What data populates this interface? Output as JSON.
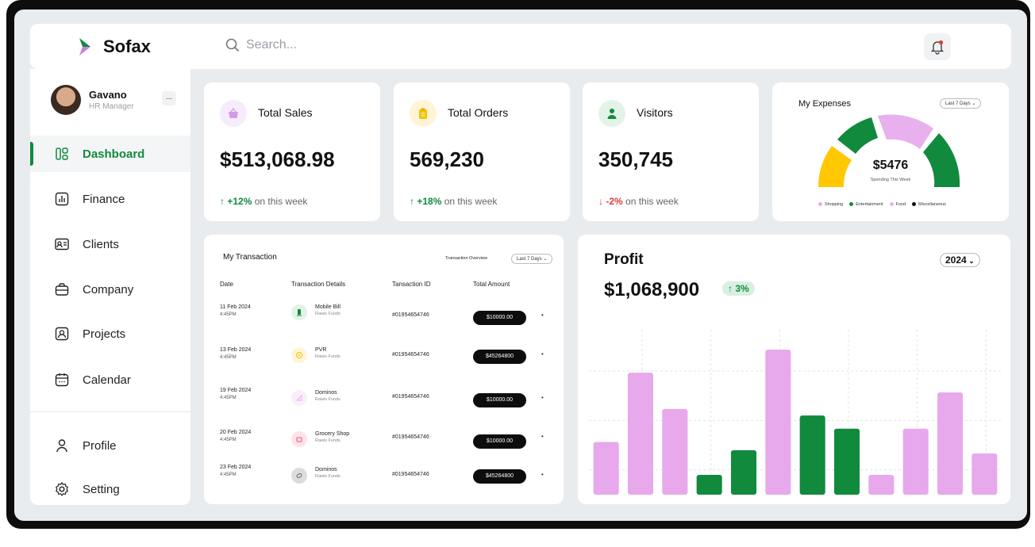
{
  "app": {
    "name": "Sofax"
  },
  "search": {
    "placeholder": "Search..."
  },
  "user": {
    "name": "Gavano",
    "role": "HR Manager",
    "more": "..."
  },
  "nav": [
    {
      "label": "Dashboard",
      "icon": "dashboard-icon"
    },
    {
      "label": "Finance",
      "icon": "finance-icon"
    },
    {
      "label": "Clients",
      "icon": "clients-icon"
    },
    {
      "label": "Company",
      "icon": "company-icon"
    },
    {
      "label": "Projects",
      "icon": "projects-icon"
    },
    {
      "label": "Calendar",
      "icon": "calendar-icon"
    },
    {
      "label": "Profile",
      "icon": "profile-icon"
    },
    {
      "label": "Setting",
      "icon": "settings-icon"
    }
  ],
  "stats": [
    {
      "title": "Total Sales",
      "value": "$513,068.98",
      "change": "+12%",
      "suffix": "on this week",
      "trend": "up",
      "icon": "basket-icon",
      "icon_bg": "#f7ecfb",
      "icon_color": "#d49be8"
    },
    {
      "title": "Total Orders",
      "value": "569,230",
      "change": "+18%",
      "suffix": "on this week",
      "trend": "up",
      "icon": "clipboard-icon",
      "icon_bg": "#fff5d6",
      "icon_color": "#f2c200"
    },
    {
      "title": "Visitors",
      "value": "350,745",
      "change": "-2%",
      "suffix": "on this week",
      "trend": "down",
      "icon": "user-icon",
      "icon_bg": "#e3f3e8",
      "icon_color": "#118a3e"
    }
  ],
  "expenses": {
    "title": "My Expenses",
    "period": "Last 7 Days",
    "amount": "$5476",
    "caption": "Spending This Week",
    "legend": [
      {
        "label": "Shopping",
        "color": "#e8b0ec"
      },
      {
        "label": "Entertainment",
        "color": "#118a3e"
      },
      {
        "label": "Food",
        "color": "#e8b0ec"
      },
      {
        "label": "Miscellaneous",
        "color": "#111111"
      }
    ]
  },
  "transactions": {
    "title": "My Transaction",
    "overview_label": "Transaction Overview",
    "period": "Last 7 Days",
    "columns": [
      "Date",
      "Transaction Details",
      "Tansaction ID",
      "Total Amount"
    ],
    "rows": [
      {
        "date": "11 Feb 2024",
        "time": "4:45PM",
        "name": "Mobile Bill",
        "source": "Rawis Funds",
        "id": "#01954654746",
        "amount": "$10000.00",
        "icon": "mobile-icon",
        "icon_bg": "#e3f3e8"
      },
      {
        "date": "13 Feb 2024",
        "time": "4:45PM",
        "name": "PVR",
        "source": "Rawis Funds",
        "id": "#01954654746",
        "amount": "$45264800",
        "icon": "film-icon",
        "icon_bg": "#fff5d6"
      },
      {
        "date": "19 Feb 2024",
        "time": "4:45PM",
        "name": "Dominos",
        "source": "Rawis Funds",
        "id": "#01954654746",
        "amount": "$10000.00",
        "icon": "pizza-icon",
        "icon_bg": "#fbeefc"
      },
      {
        "date": "20 Feb 2024",
        "time": "4:45PM",
        "name": "Grocery Shop",
        "source": "Rawis Funds",
        "id": "#01954654746",
        "amount": "$10000.00",
        "icon": "cart-icon",
        "icon_bg": "#fde3ea"
      },
      {
        "date": "23 Feb 2024",
        "time": "4:45PM",
        "name": "Dominos",
        "source": "Rawis Funds",
        "id": "#01954654746",
        "amount": "$45264800",
        "icon": "pizza-icon",
        "icon_bg": "#dcdcdc"
      }
    ]
  },
  "profit": {
    "title": "Profit",
    "year": "2024",
    "amount": "$1,068,900",
    "change": "3%"
  },
  "chart_data": {
    "type": "bar",
    "values": [
      32,
      74,
      52,
      12,
      27,
      88,
      48,
      40,
      12,
      40,
      62,
      25
    ],
    "colors": [
      "#e8a8ec",
      "#e8a8ec",
      "#e8a8ec",
      "#118a3e",
      "#118a3e",
      "#e8a8ec",
      "#118a3e",
      "#118a3e",
      "#e8a8ec",
      "#e8a8ec",
      "#e8a8ec",
      "#e8a8ec"
    ],
    "ylim": [
      0,
      100
    ],
    "grid": true
  }
}
